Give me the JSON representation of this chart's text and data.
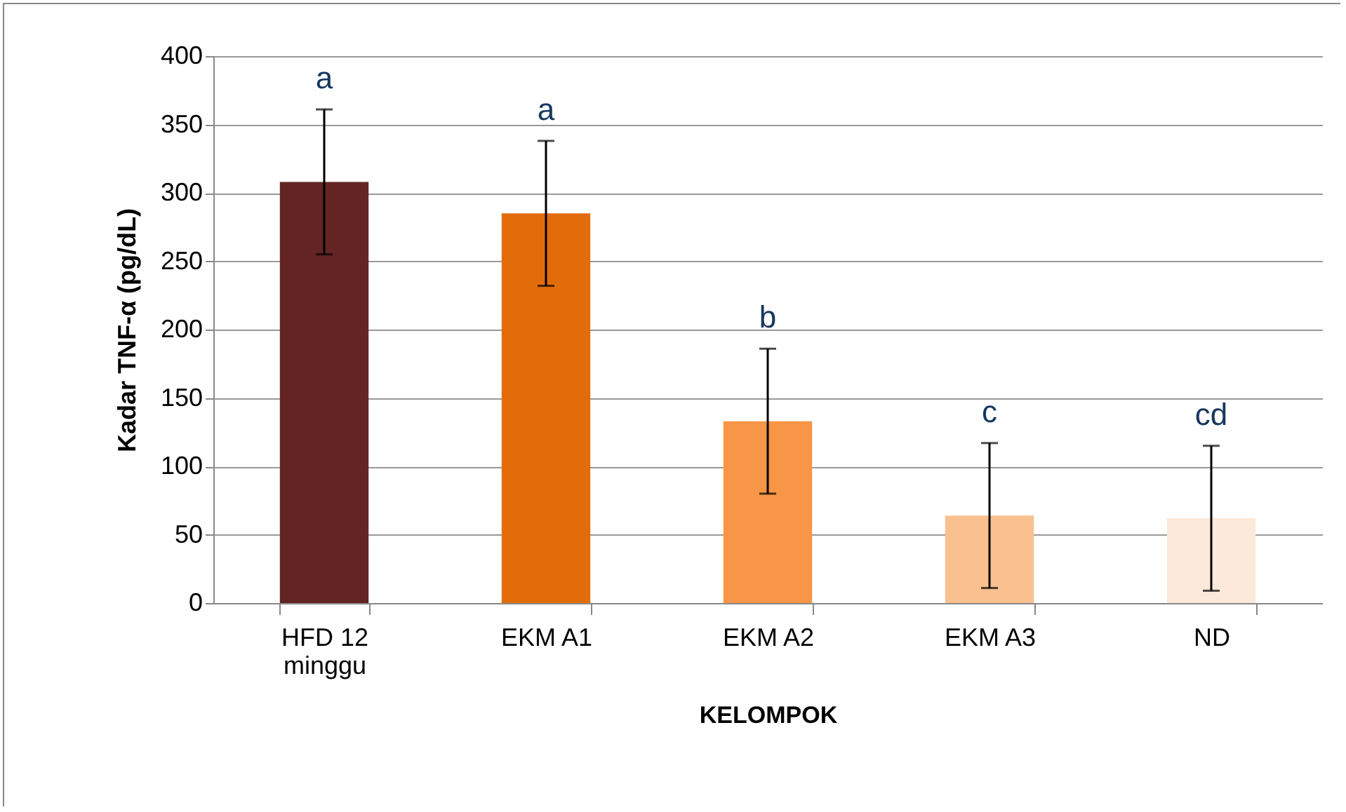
{
  "chart_data": {
    "type": "bar",
    "xlabel": "KELOMPOK",
    "ylabel": "Kadar TNF-α (pg/dL)",
    "categories": [
      "HFD 12 minggu",
      "EKM A1",
      "EKM A2",
      "EKM A3",
      "ND"
    ],
    "values": [
      308,
      285,
      133,
      64,
      62
    ],
    "colors": [
      "#632523",
      "#e36c0a",
      "#f79646",
      "#fac090",
      "#fde9d9"
    ],
    "errors": [
      53,
      53,
      53,
      53,
      53
    ],
    "ylim": [
      0,
      400
    ],
    "yticks": [
      0,
      50,
      100,
      150,
      200,
      250,
      300,
      350,
      400
    ],
    "grid": "y",
    "annotations": [
      "a",
      "a",
      "b",
      "c",
      "cd"
    ]
  }
}
